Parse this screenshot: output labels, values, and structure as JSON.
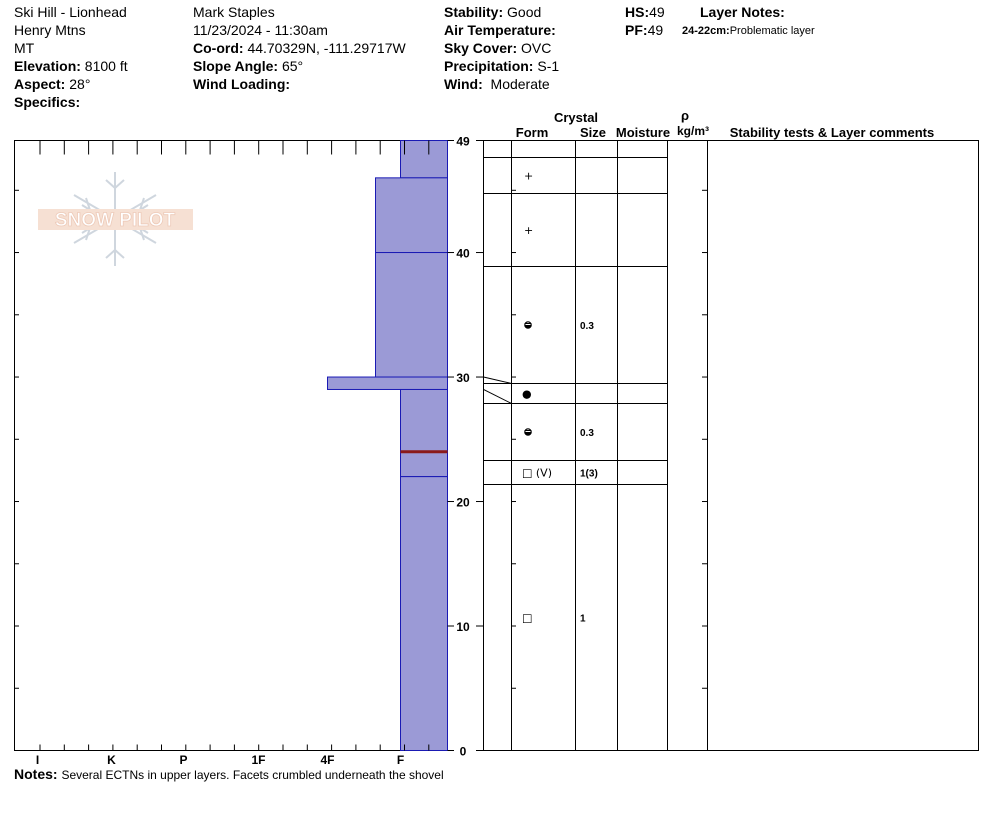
{
  "header": {
    "location": "Ski Hill - Lionhead",
    "range": "Henry Mtns",
    "state": "MT",
    "elevation_label": "Elevation:",
    "elevation_value": "8100 ft",
    "aspect_label": "Aspect:",
    "aspect_value": "28°",
    "specifics_label": "Specifics:",
    "observer": "Mark Staples",
    "datetime": "11/23/2024 - 11:30am",
    "coord_label": "Co-ord:",
    "coord_value": "44.70329N, -111.29717W",
    "slope_label": "Slope Angle:",
    "slope_value": "65°",
    "wind_loading_label": "Wind Loading:",
    "stability_label": "Stability:",
    "stability_value": "Good",
    "air_temp_label": "Air Temperature:",
    "sky_label": "Sky Cover:",
    "sky_value": "OVC",
    "precip_label": "Precipitation:",
    "precip_value": "S-1",
    "wind_label": "Wind:",
    "wind_value": "Moderate",
    "hs_label": "HS:",
    "hs_value": "49",
    "pf_label": "PF:",
    "pf_value": "49",
    "layer_notes_label": "Layer Notes:",
    "layer_note_depth": "24-22cm:",
    "layer_note_text": "Problematic layer"
  },
  "logo_text": "SNOW PILOT",
  "columns": {
    "crystal": "Crystal",
    "form": "Form",
    "size": "Size",
    "moisture": "Moisture",
    "rho": "ρ",
    "density_unit": "kg/m³",
    "stability": "Stability tests & Layer comments"
  },
  "notes": {
    "label": "Notes:",
    "text": "Several ECTNs in upper layers. Facets crumbled underneath the shovel"
  },
  "colors": {
    "layer_fill": "#9b9ad6",
    "layer_border": "#1a1ab4",
    "problem_layer": "#8b1a1a"
  },
  "chart_data": {
    "type": "snow_profile",
    "hardness_axis": [
      "I",
      "K",
      "P",
      "1F",
      "4F",
      "F"
    ],
    "depth_axis": {
      "range": [
        0,
        49
      ],
      "ticks": [
        0,
        10,
        20,
        30,
        40,
        49
      ],
      "unit": "cm"
    },
    "layers": [
      {
        "top": 49,
        "bottom": 46,
        "hardness": "F",
        "form": "+",
        "size": ""
      },
      {
        "top": 46,
        "bottom": 40,
        "hardness": "F+",
        "form": "+",
        "size": ""
      },
      {
        "top": 40,
        "bottom": 30,
        "hardness": "F+",
        "form": "rounding",
        "size": "0.3"
      },
      {
        "top": 30,
        "bottom": 29,
        "hardness": "4F",
        "form": "●",
        "size": ""
      },
      {
        "top": 29,
        "bottom": 24,
        "hardness": "F",
        "form": "rounding",
        "size": "0.3"
      },
      {
        "top": 24,
        "bottom": 22,
        "hardness": "F",
        "form": "□ (V)",
        "size": "1(3)"
      },
      {
        "top": 22,
        "bottom": 0,
        "hardness": "F",
        "form": "□",
        "size": "1"
      }
    ],
    "problem_layer_depth": 24
  }
}
